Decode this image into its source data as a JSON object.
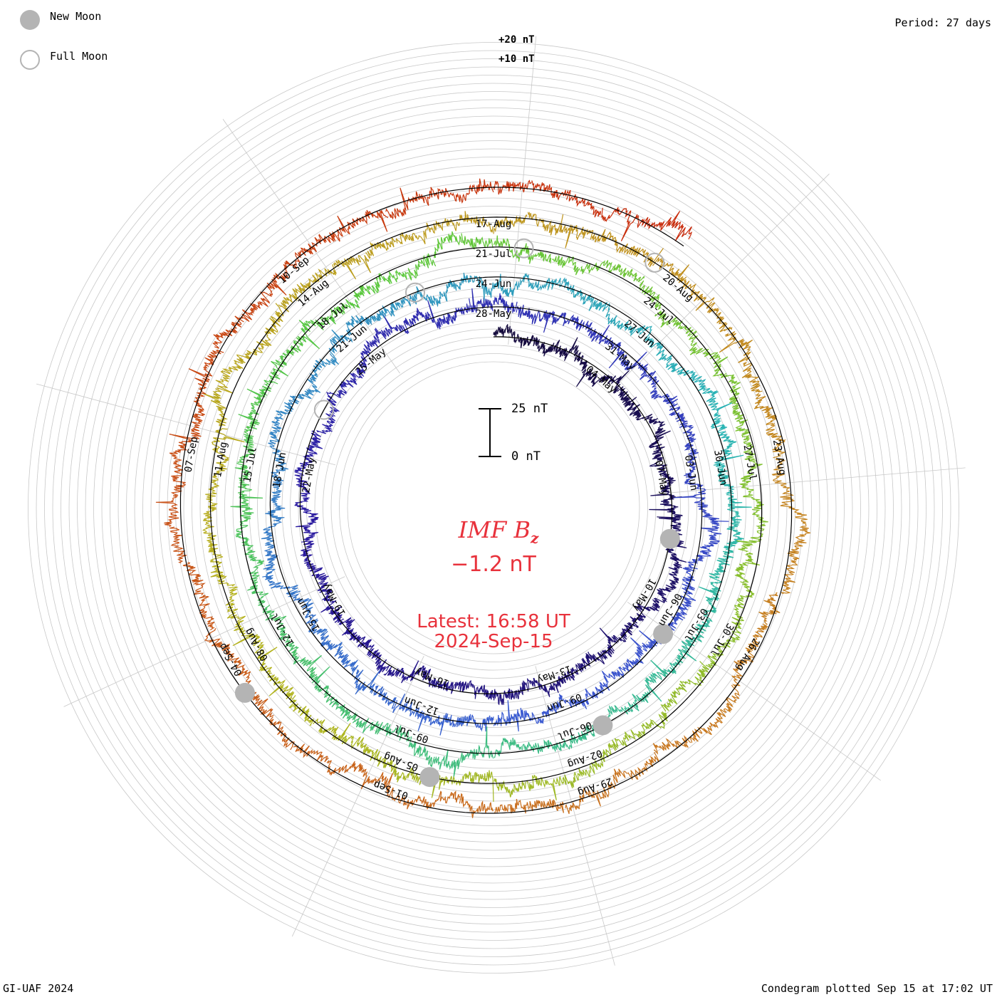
{
  "legend": {
    "new_moon_label": "New Moon",
    "full_moon_label": "Full Moon",
    "new_moon_color": "#b4b4b4",
    "full_moon_color": "#b4b4b4"
  },
  "period_label": "Period: 27 days",
  "footer": {
    "left": "GI-UAF 2024",
    "right": "Condegram plotted Sep 15 at 17:02 UT"
  },
  "scale": {
    "ring_labels": [
      "+20 nT",
      "+10 nT"
    ],
    "bar_top_label": "25 nT",
    "bar_bottom_label": "0 nT"
  },
  "center": {
    "title_main": "IMF B",
    "title_sub": "z",
    "value": "−1.2 nT",
    "latest": "Latest: 16:58 UT",
    "date": "2024-Sep-15",
    "color": "#e8323c"
  },
  "chart_data": {
    "type": "line",
    "plot_kind": "spiral condegram",
    "quantity": "IMF Bz",
    "units": "nT",
    "period_days": 27,
    "start_date": "2024-05-01",
    "end_date": "2024-09-15",
    "latest_value_nT": -1.2,
    "color_ramp": [
      "#140a3c",
      "#2a1aa0",
      "#3c5ad2",
      "#2ab4b4",
      "#5ac83c",
      "#b4b41e",
      "#c8781e",
      "#c8280a"
    ],
    "date_labels": [
      "04-May",
      "07-May",
      "10-May",
      "13-May",
      "16-May",
      "19-May",
      "22-May",
      "25-May",
      "28-May",
      "31-May",
      "03-Jun",
      "06-Jun",
      "09-Jun",
      "12-Jun",
      "15-Jun",
      "18-Jun",
      "21-Jun",
      "24-Jun",
      "27-Jun",
      "30-Jun",
      "03-Jul",
      "06-Jul",
      "09-Jul",
      "12-Jul",
      "15-Jul",
      "18-Jul",
      "21-Jul",
      "24-Jul",
      "27-Jul",
      "30-Jul",
      "02-Aug",
      "05-Aug",
      "08-Aug",
      "11-Aug",
      "14-Aug",
      "17-Aug",
      "20-Aug",
      "23-Aug",
      "26-Aug",
      "29-Aug",
      "01-Sep",
      "04-Sep",
      "07-Sep",
      "10-Sep"
    ],
    "new_moons": [
      "2024-05-08",
      "2024-06-06",
      "2024-07-05",
      "2024-08-04",
      "2024-09-03"
    ],
    "full_moons": [
      "2024-05-23",
      "2024-06-22",
      "2024-07-21",
      "2024-08-19"
    ]
  }
}
